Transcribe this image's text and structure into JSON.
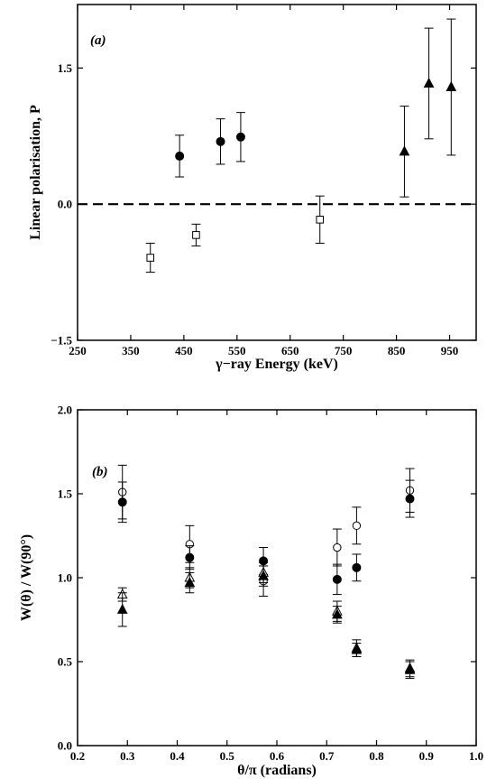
{
  "chart_data": [
    {
      "type": "scatter",
      "panel_label": "(a)",
      "xlabel": "γ−ray Energy (keV)",
      "ylabel": "Linear polarisation, P",
      "xlim": [
        250,
        1000
      ],
      "ylim": [
        -1.5,
        2.2
      ],
      "xticks": [
        250,
        350,
        450,
        550,
        650,
        750,
        850,
        950
      ],
      "yticks": [
        -1.5,
        0.0,
        1.5
      ],
      "ytick_labels": [
        "−1.5",
        "0.0",
        "1.5"
      ],
      "reference_line": {
        "y": 0.0,
        "style": "dashed"
      },
      "series": [
        {
          "marker": "filled-circle",
          "x": [
            442,
            519,
            557
          ],
          "y": [
            0.53,
            0.69,
            0.74
          ],
          "yerr": [
            0.23,
            0.25,
            0.27
          ]
        },
        {
          "marker": "open-square",
          "x": [
            387,
            473,
            706
          ],
          "y": [
            -0.59,
            -0.34,
            -0.17
          ],
          "yerr": [
            0.16,
            0.12,
            0.26
          ]
        },
        {
          "marker": "filled-triangle",
          "x": [
            865,
            911,
            953
          ],
          "y": [
            0.58,
            1.33,
            1.29
          ],
          "yerr": [
            0.5,
            0.61,
            0.75
          ]
        }
      ]
    },
    {
      "type": "scatter",
      "panel_label": "(b)",
      "xlabel": "θ/π (radians)",
      "ylabel": "W(θ) / W(90°)",
      "xlim": [
        0.2,
        1.0
      ],
      "ylim": [
        0.0,
        2.0
      ],
      "xticks": [
        0.2,
        0.3,
        0.4,
        0.5,
        0.6,
        0.7,
        0.8,
        0.9,
        1.0
      ],
      "xtick_labels": [
        "0.2",
        "0.3",
        "0.4",
        "0.5",
        "0.6",
        "0.7",
        "0.8",
        "0.9",
        "1.0"
      ],
      "yticks": [
        0.0,
        0.5,
        1.0,
        1.5,
        2.0
      ],
      "ytick_labels": [
        "0.0",
        "0.5",
        "1.0",
        "1.5",
        "2.0"
      ],
      "series": [
        {
          "marker": "open-circle",
          "x": [
            0.29,
            0.425,
            0.573,
            0.721,
            0.76,
            0.867
          ],
          "y": [
            1.51,
            1.2,
            0.98,
            1.18,
            1.31,
            1.52
          ],
          "yerr": [
            0.16,
            0.11,
            0.09,
            0.11,
            0.11,
            0.13
          ]
        },
        {
          "marker": "filled-circle",
          "x": [
            0.29,
            0.425,
            0.573,
            0.721,
            0.76,
            0.867
          ],
          "y": [
            1.45,
            1.12,
            1.1,
            0.99,
            1.06,
            1.47
          ],
          "yerr": [
            0.12,
            0.07,
            0.08,
            0.09,
            0.08,
            0.11
          ]
        },
        {
          "marker": "open-triangle",
          "x": [
            0.29,
            0.425,
            0.573,
            0.721,
            0.76,
            0.867
          ],
          "y": [
            0.9,
            1.0,
            1.03,
            0.8,
            0.58,
            0.46
          ],
          "yerr": [
            0.04,
            0.06,
            0.06,
            0.06,
            0.05,
            0.05
          ]
        },
        {
          "marker": "filled-triangle",
          "x": [
            0.29,
            0.425,
            0.573,
            0.721,
            0.76,
            0.867
          ],
          "y": [
            0.81,
            0.97,
            1.01,
            0.78,
            0.57,
            0.45
          ],
          "yerr": [
            0.1,
            0.06,
            0.06,
            0.05,
            0.04,
            0.05
          ]
        }
      ]
    }
  ]
}
